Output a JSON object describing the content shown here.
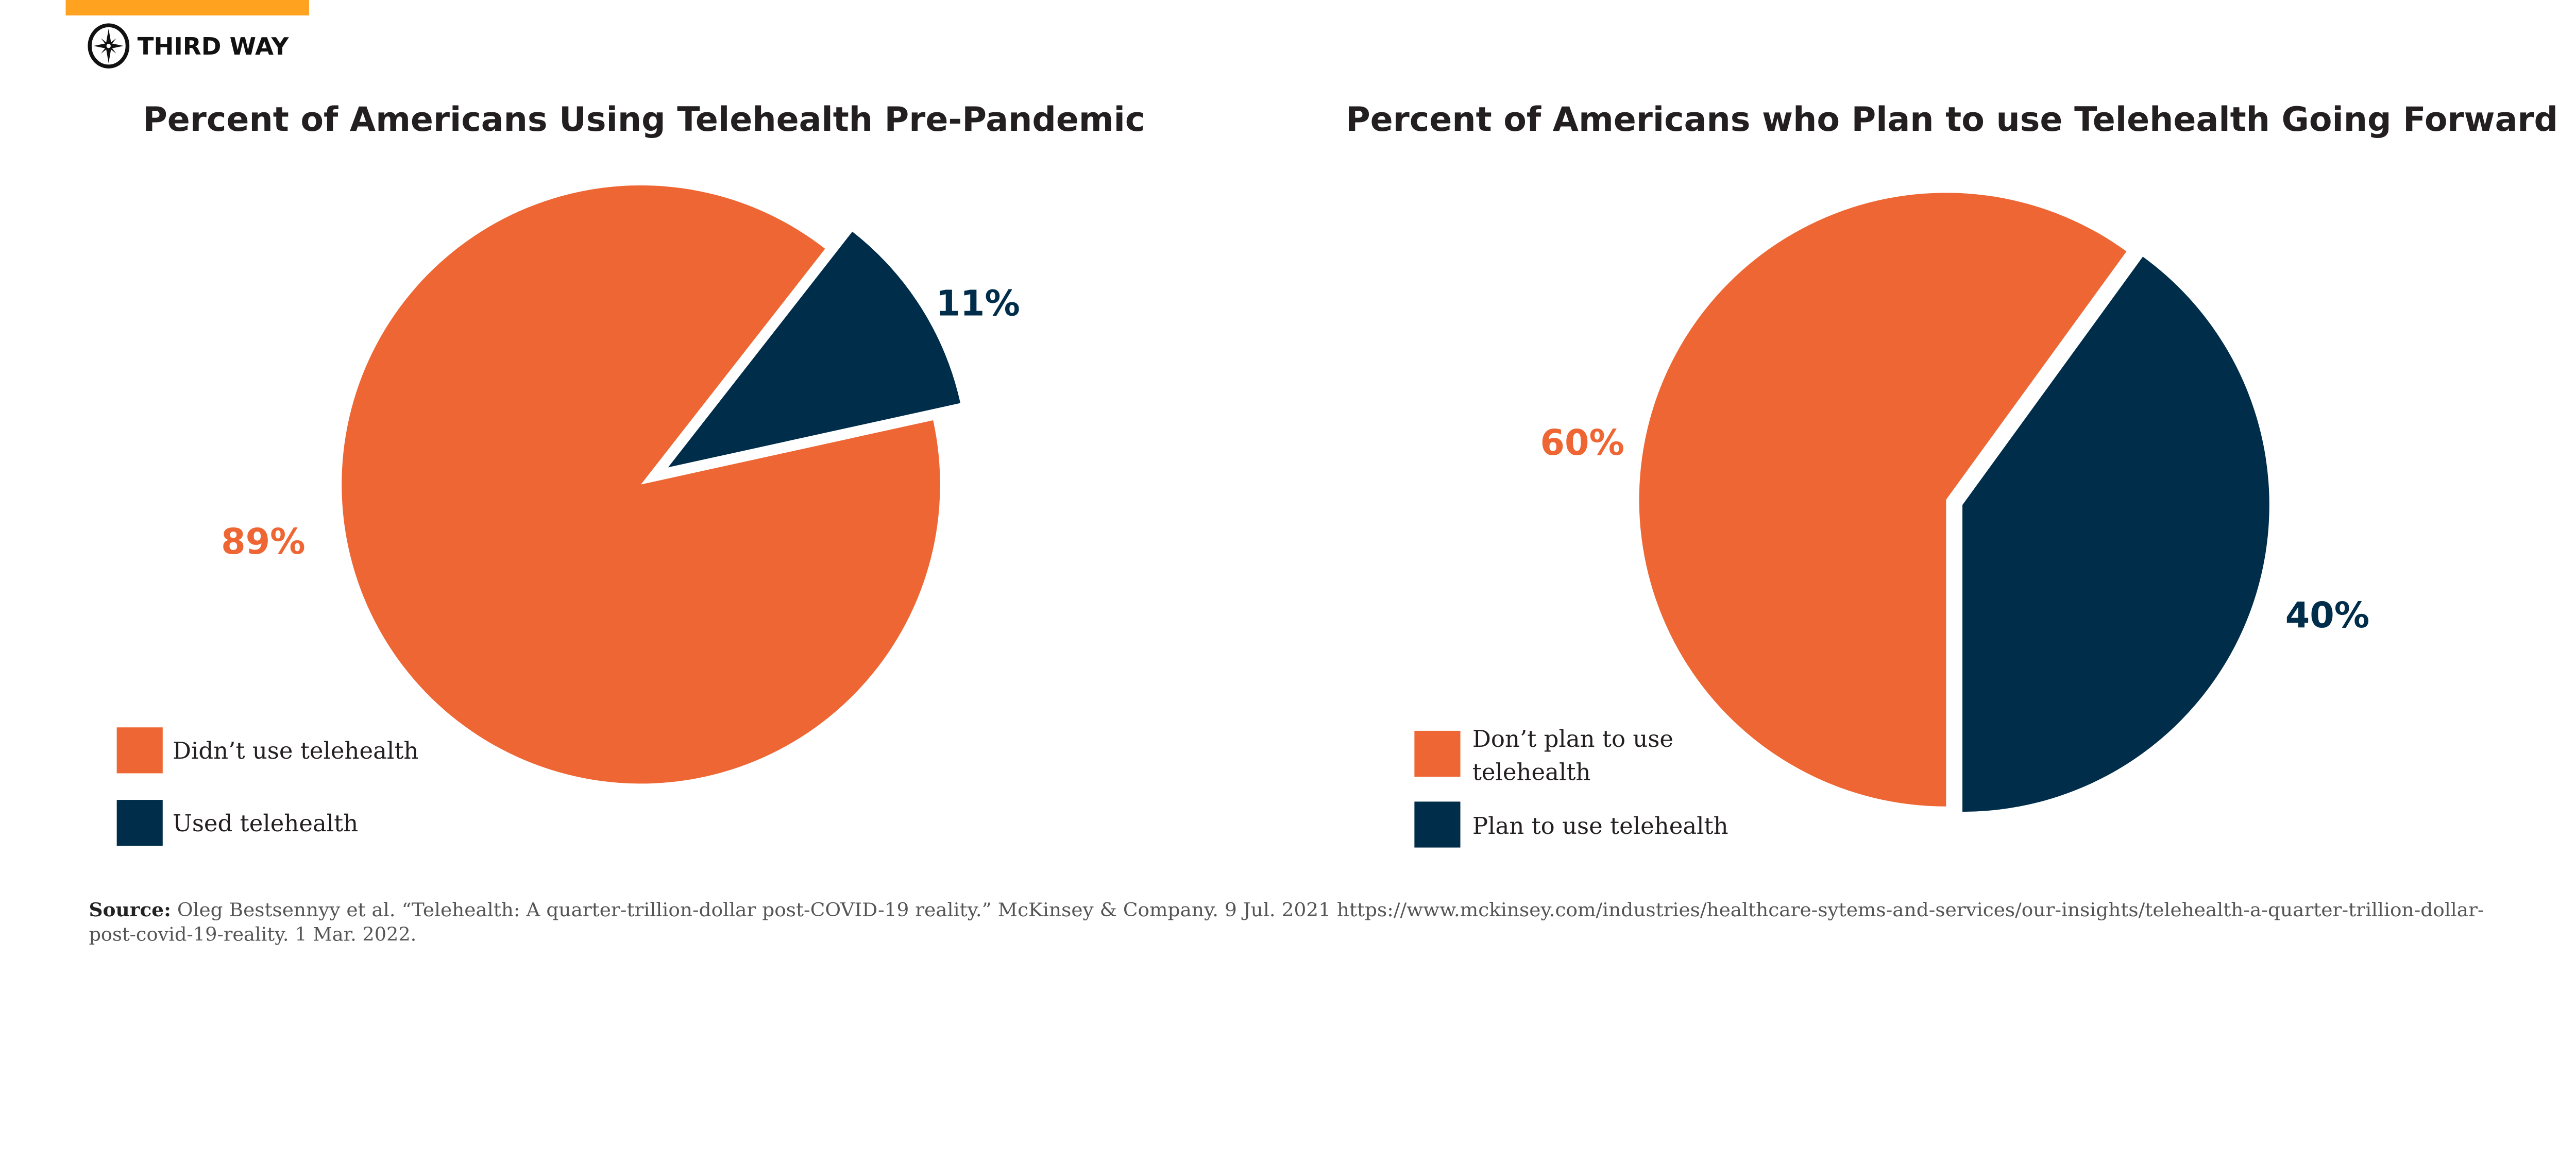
{
  "brand": {
    "name": "THIRD WAY",
    "accent": "#FFA220",
    "logo_icon": "compass-icon"
  },
  "colors": {
    "orange": "#EE6633",
    "navy": "#002D4A"
  },
  "chart_data": [
    {
      "type": "pie",
      "title": "Percent of Americans Using Telehealth Pre-Pandemic",
      "slices": [
        {
          "label": "Didn’t use telehealth",
          "value": 89,
          "display": "89%",
          "color": "#EE6633"
        },
        {
          "label": "Used telehealth",
          "value": 11,
          "display": "11%",
          "color": "#002D4A",
          "exploded": true
        }
      ],
      "legend": "bottom-left"
    },
    {
      "type": "pie",
      "title": "Percent of Americans who Plan to use Telehealth Going Forward",
      "slices": [
        {
          "label_lines": [
            "Don’t plan to use",
            "telehealth"
          ],
          "value": 60,
          "display": "60%",
          "color": "#EE6633"
        },
        {
          "label": "Plan to use telehealth",
          "value": 40,
          "display": "40%",
          "color": "#002D4A",
          "exploded": true
        }
      ],
      "legend": "bottom-left"
    }
  ],
  "source": {
    "label": "Source:",
    "line1": "Oleg Bestsennyy et al. “Telehealth: A quarter-trillion-dollar post-COVID-19 reality.” McKinsey & Company. 9 Jul. 2021 https://www.mckinsey.com/industries/healthcare-sytems-and-services/our-insights/telehealth-a-quarter-trillion-dollar-",
    "line2": "post-covid-19-reality. 1 Mar. 2022."
  }
}
